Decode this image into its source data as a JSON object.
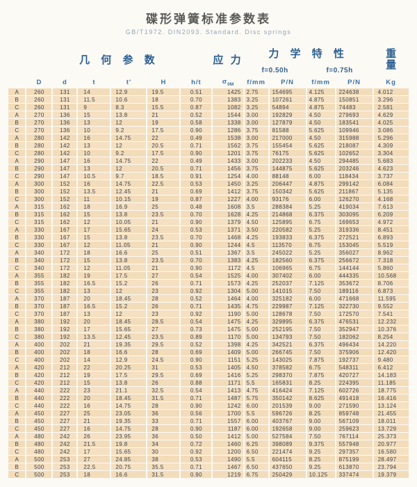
{
  "title": "碟形弹簧标准参数表",
  "subtitle": "GB/T1972.  DIN2093.  Standard.  Disc springs",
  "table": {
    "group_headers": {
      "geometry": "几 何 参 数",
      "stress": "应 力",
      "mechanical": "力 学 特 性",
      "weight_char1": "重",
      "weight_char2": "量"
    },
    "sub_headers": {
      "f050": "f=0.50h",
      "f075": "f=0.75h"
    },
    "sigma": "σ",
    "sigma_sub": "0M",
    "units": [
      "D",
      "d",
      "t",
      "t'",
      "H",
      "h/t",
      "f/mm",
      "P/N",
      "f/mm",
      "P/N",
      "Kg"
    ],
    "rows": [
      [
        "A",
        "260",
        "131",
        "14",
        "12.9",
        "19.5",
        "0.51",
        "1425",
        "2.75",
        "154695",
        "4.125",
        "224638",
        "4.012"
      ],
      [
        "B",
        "260",
        "131",
        "11.5",
        "10.6",
        "18",
        "0.70",
        "1383",
        "3.25",
        "107261",
        "4.875",
        "150851",
        "3.296"
      ],
      [
        "C",
        "260",
        "131",
        "9",
        "8.3",
        "15.5",
        "0.87",
        "1082",
        "3.25",
        "54894",
        "4.875",
        "74483",
        "2.581"
      ],
      [
        "A",
        "270",
        "136",
        "15",
        "13.8",
        "21",
        "0.52",
        "1544",
        "3.00",
        "192829",
        "4.50",
        "279693",
        "4.629"
      ],
      [
        "B",
        "270",
        "136",
        "13",
        "12",
        "19",
        "0.58",
        "1338",
        "3.00",
        "127879",
        "4.50",
        "183541",
        "4.025"
      ],
      [
        "C",
        "270",
        "136",
        "10",
        "9.2",
        "17.5",
        "0.90",
        "1286",
        "3.75",
        "81588",
        "5.625",
        "109946",
        "3.086"
      ],
      [
        "A",
        "280",
        "142",
        "16",
        "14.75",
        "22",
        "0.49",
        "1538",
        "3.00",
        "217000",
        "4.50",
        "315988",
        "5.296"
      ],
      [
        "B",
        "280",
        "142",
        "13",
        "12",
        "20.5",
        "0.71",
        "1562",
        "3.75",
        "155454",
        "5.625",
        "218087",
        "4.309"
      ],
      [
        "C",
        "280",
        "142",
        "10",
        "9.2",
        "17.5",
        "0.90",
        "1201",
        "3.75",
        "76175",
        "5.625",
        "102652",
        "3.304"
      ],
      [
        "A",
        "290",
        "147",
        "16",
        "14.75",
        "22",
        "0.49",
        "1433",
        "3.00",
        "202233",
        "4.50",
        "294485",
        "5.683"
      ],
      [
        "B",
        "290",
        "147",
        "13",
        "12",
        "20.5",
        "0.71",
        "1456",
        "3.75",
        "144875",
        "5.625",
        "203246",
        "4.623"
      ],
      [
        "C",
        "290",
        "147",
        "10.5",
        "9.7",
        "18.5",
        "0.91",
        "1254",
        "4.00",
        "88148",
        "6.00",
        "118434",
        "3.737"
      ],
      [
        "A",
        "300",
        "152",
        "16",
        "14.75",
        "22.5",
        "0.53",
        "1450",
        "3.25",
        "206447",
        "4.875",
        "299142",
        "6.084"
      ],
      [
        "B",
        "300",
        "152",
        "13.5",
        "12.45",
        "21",
        "0.69",
        "1412",
        "3.75",
        "150342",
        "5.625",
        "211867",
        "5.135"
      ],
      [
        "C",
        "300",
        "152",
        "11",
        "10.15",
        "19",
        "0.87",
        "1227",
        "4.00",
        "93176",
        "6.00",
        "126270",
        "4.168"
      ],
      [
        "A",
        "315",
        "162",
        "18",
        "16.9",
        "25",
        "0.48",
        "1608",
        "3.5",
        "288384",
        "5.25",
        "419034",
        "7.613"
      ],
      [
        "B",
        "315",
        "162",
        "15",
        "13.8",
        "23.5",
        "0.70",
        "1628",
        "4.25",
        "214868",
        "6.375",
        "303095",
        "6.209"
      ],
      [
        "C",
        "315",
        "162",
        "12",
        "10.05",
        "21",
        "0.90",
        "1379",
        "4.50",
        "125895",
        "6.75",
        "169653",
        "4.972"
      ],
      [
        "A",
        "330",
        "167",
        "17",
        "15.65",
        "24",
        "0.53",
        "1371",
        "3.50",
        "220582",
        "5.25",
        "319336",
        "8.451"
      ],
      [
        "B",
        "330",
        "167",
        "15",
        "13.8",
        "23.5",
        "0.70",
        "1468",
        "4.25",
        "193833",
        "6.375",
        "272521",
        "6.893"
      ],
      [
        "C",
        "330",
        "167",
        "12",
        "11.05",
        "21",
        "0.90",
        "1244",
        "4.5",
        "113570",
        "6.75",
        "153045",
        "5.519"
      ],
      [
        "A",
        "340",
        "172",
        "18",
        "16.6",
        "25",
        "0.51",
        "1367",
        "3.5",
        "245022",
        "5.25",
        "356027",
        "8.962"
      ],
      [
        "B",
        "340",
        "172",
        "15",
        "13.8",
        "23.5",
        "0.70",
        "1383",
        "4.25",
        "182560",
        "6.375",
        "256672",
        "7.318"
      ],
      [
        "C",
        "340",
        "172",
        "12",
        "11.05",
        "21",
        "0.90",
        "1172",
        "4.5",
        "106965",
        "6.75",
        "144144",
        "5.860"
      ],
      [
        "A",
        "355",
        "182",
        "19",
        "17.5",
        "27",
        "0.54",
        "1525",
        "4.00",
        "307402",
        "6.00",
        "444335",
        "10.568"
      ],
      [
        "B",
        "355",
        "182",
        "16.5",
        "15.2",
        "26",
        "0.71",
        "1573",
        "4.25",
        "252037",
        "7.125",
        "353672",
        "8.706"
      ],
      [
        "C",
        "355",
        "182",
        "13",
        "12",
        "23",
        "0.92",
        "1304",
        "5.00",
        "141015",
        "7.50",
        "189116",
        "6.873"
      ],
      [
        "A",
        "370",
        "187",
        "20",
        "18.45",
        "28",
        "0.52",
        "1464",
        "4.00",
        "325182",
        "6.00",
        "471668",
        "11.595"
      ],
      [
        "B",
        "370",
        "187",
        "16.5",
        "15.2",
        "26",
        "0.71",
        "1435",
        "4.75",
        "229987",
        "7.125",
        "322730",
        "9.552"
      ],
      [
        "C",
        "370",
        "187",
        "13",
        "12",
        "23",
        "0.92",
        "1190",
        "5.00",
        "128678",
        "7.50",
        "172570",
        "7.541"
      ],
      [
        "A",
        "380",
        "192",
        "20",
        "18.45",
        "28.5",
        "0.54",
        "1475",
        "4.25",
        "329895",
        "6.375",
        "476531",
        "12.232"
      ],
      [
        "B",
        "380",
        "192",
        "17",
        "15.65",
        "27",
        "0.73",
        "1475",
        "5.00",
        "252195",
        "7.50",
        "352947",
        "10.376"
      ],
      [
        "C",
        "380",
        "192",
        "13.5",
        "12.45",
        "23.5",
        "0.89",
        "1170",
        "5.00",
        "134793",
        "7.50",
        "182062",
        "8.254"
      ],
      [
        "A",
        "400",
        "202",
        "21",
        "19.35",
        "29.5",
        "0.52",
        "1398",
        "4.25",
        "342521",
        "6.375",
        "496434",
        "14.220"
      ],
      [
        "B",
        "400",
        "202",
        "18",
        "16.6",
        "28",
        "0.69",
        "1409",
        "5.00",
        "266745",
        "7.50",
        "375906",
        "12.420"
      ],
      [
        "C",
        "400",
        "202",
        "14",
        "12.9",
        "24.5",
        "0.90",
        "1151",
        "5.25",
        "143025",
        "7.875",
        "192737",
        "9.480"
      ],
      [
        "A",
        "420",
        "212",
        "22",
        "20.25",
        "31",
        "0.53",
        "1405",
        "4.50",
        "378582",
        "6.75",
        "548311",
        "6.412"
      ],
      [
        "B",
        "420",
        "212",
        "19",
        "17.5",
        "29.5",
        "0.69",
        "1416",
        "5.25",
        "298370",
        "7.875",
        "420727",
        "14.183"
      ],
      [
        "C",
        "420",
        "212",
        "15",
        "13.8",
        "26",
        "0.88",
        "1171",
        "5.5",
        "165831",
        "8.25",
        "224395",
        "11.185"
      ],
      [
        "A",
        "440",
        "222",
        "23",
        "21.1",
        "32.5",
        "0.54",
        "1413",
        "4.75",
        "416424",
        "7.125",
        "602726",
        "18.775"
      ],
      [
        "B",
        "440",
        "222",
        "20",
        "18.45",
        "31.5",
        "0.71",
        "1487",
        "5.75",
        "350142",
        "8.625",
        "491418",
        "16.416"
      ],
      [
        "C",
        "440",
        "222",
        "16",
        "14.75",
        "28",
        "0.90",
        "1242",
        "6.00",
        "201539",
        "9.00",
        "271590",
        "13.124"
      ],
      [
        "A",
        "450",
        "227",
        "25",
        "23.05",
        "36",
        "0.56",
        "1700",
        "5.5",
        "596726",
        "8.25",
        "859748",
        "21.455"
      ],
      [
        "B",
        "450",
        "227",
        "21",
        "19.35",
        "33",
        "0.71",
        "1557",
        "6.00",
        "403767",
        "9.00",
        "567109",
        "18.011"
      ],
      [
        "C",
        "450",
        "227",
        "16",
        "14.75",
        "28",
        "0.90",
        "1187",
        "6.00",
        "192658",
        "9.00",
        "259623",
        "13.729"
      ],
      [
        "A",
        "480",
        "242",
        "26",
        "23.95",
        "36",
        "0.50",
        "1412",
        "5.00",
        "527584",
        "7.50",
        "767114",
        "25.373"
      ],
      [
        "B",
        "480",
        "242",
        "21.5",
        "19.8",
        "34",
        "0.72",
        "1460",
        "6.25",
        "398089",
        "9.375",
        "557948",
        "20.977"
      ],
      [
        "C",
        "480",
        "242",
        "17",
        "15.65",
        "30",
        "0.92",
        "1200",
        "6.50",
        "221474",
        "9.25",
        "297357",
        "16.580"
      ],
      [
        "A",
        "500",
        "253",
        "27",
        "24.85",
        "38",
        "0.53",
        "1490",
        "5.5",
        "604115",
        "8.25",
        "875199",
        "28.497"
      ],
      [
        "B",
        "500",
        "253",
        "22.5",
        "20.75",
        "35.5",
        "0.71",
        "1467",
        "6.50",
        "437650",
        "9.25",
        "613870",
        "23.794"
      ],
      [
        "C",
        "500",
        "253",
        "18",
        "16.6",
        "31.5",
        "0.90",
        "1219",
        "6.75",
        "250429",
        "10.125",
        "337474",
        "19.379"
      ]
    ]
  }
}
